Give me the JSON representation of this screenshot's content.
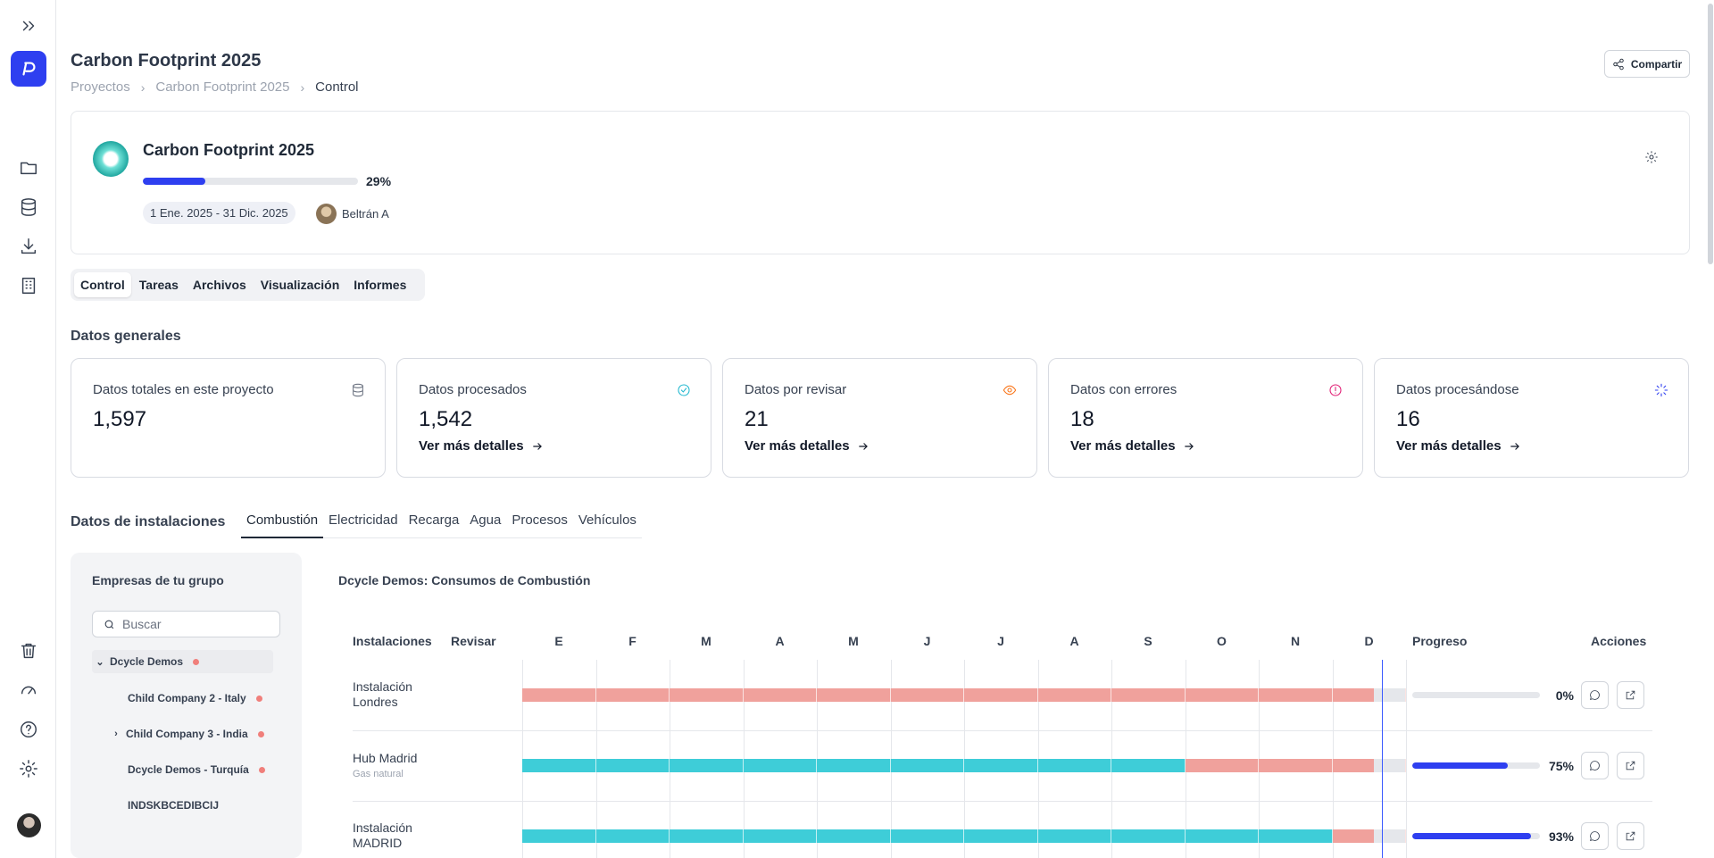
{
  "sidebar": {
    "items": [
      {
        "name": "expand-icon"
      },
      {
        "name": "folder-icon"
      },
      {
        "name": "database-icon"
      },
      {
        "name": "download-icon"
      },
      {
        "name": "building-icon"
      },
      {
        "name": "trash-icon"
      },
      {
        "name": "gauge-icon"
      },
      {
        "name": "help-icon"
      },
      {
        "name": "settings-icon"
      }
    ]
  },
  "header": {
    "title": "Carbon Footprint 2025",
    "breadcrumb": [
      "Proyectos",
      "Carbon Footprint 2025",
      "Control"
    ],
    "share_label": "Compartir"
  },
  "project": {
    "name": "Carbon Footprint 2025",
    "progress": 0.29,
    "progress_label": "29%",
    "dates": "1 Ene. 2025 - 31 Dic. 2025",
    "owner": "Beltrán A"
  },
  "tabs": [
    "Control",
    "Tareas",
    "Archivos",
    "Visualización",
    "Informes"
  ],
  "general": {
    "title": "Datos generales",
    "link_label": "Ver más detalles",
    "cards": [
      {
        "label": "Datos totales en este proyecto",
        "value": "1,597",
        "icon": "database-icon",
        "color": "#6b7280"
      },
      {
        "label": "Datos procesados",
        "value": "1,542",
        "icon": "check-circle-icon",
        "color": "#22b8cf"
      },
      {
        "label": "Datos por revisar",
        "value": "21",
        "icon": "eye-icon",
        "color": "#f97316"
      },
      {
        "label": "Datos con errores",
        "value": "18",
        "icon": "alert-circle-icon",
        "color": "#e11d74"
      },
      {
        "label": "Datos procesándose",
        "value": "16",
        "icon": "loader-icon",
        "color": "#2e3ff0"
      }
    ]
  },
  "installations": {
    "title": "Datos de instalaciones",
    "tabs": [
      "Combustión",
      "Electricidad",
      "Recarga",
      "Agua",
      "Procesos",
      "Vehículos"
    ],
    "active_tab": "Combustión"
  },
  "group": {
    "title": "Empresas de tu grupo",
    "search_placeholder": "Buscar",
    "companies": [
      {
        "label": "Dcycle Demos",
        "has_dot": true,
        "expanded": true
      },
      {
        "label": "Child Company 2 - Italy",
        "has_dot": true
      },
      {
        "label": "Child Company 3 - India",
        "has_dot": true,
        "collapsible": true
      },
      {
        "label": "Dcycle Demos - Turquía",
        "has_dot": true
      },
      {
        "label": "INDSKBCEDIBCIJ",
        "has_dot": false
      }
    ]
  },
  "gantt": {
    "title": "Dcycle Demos: Consumos de Combustión",
    "col_installations": "Instalaciones",
    "col_review": "Revisar",
    "col_progress": "Progreso",
    "col_actions": "Acciones",
    "months": [
      "E",
      "F",
      "M",
      "A",
      "M",
      "J",
      "J",
      "A",
      "S",
      "O",
      "N",
      "D"
    ],
    "colors": {
      "done": "#3ecdd8",
      "missing": "#f0a19c",
      "future": "#e5e7eb",
      "today": "#3b5bff"
    },
    "rows": [
      {
        "name": "Instalación Londres",
        "subtitle": "",
        "months_done": 0,
        "progress": 0.0,
        "progress_label": "0%"
      },
      {
        "name": "Hub Madrid",
        "subtitle": "Gas natural",
        "months_done": 9,
        "progress": 0.75,
        "progress_label": "75%"
      },
      {
        "name": "Instalación MADRID",
        "subtitle": "",
        "months_done": 11,
        "progress": 0.93,
        "progress_label": "93%"
      }
    ]
  }
}
